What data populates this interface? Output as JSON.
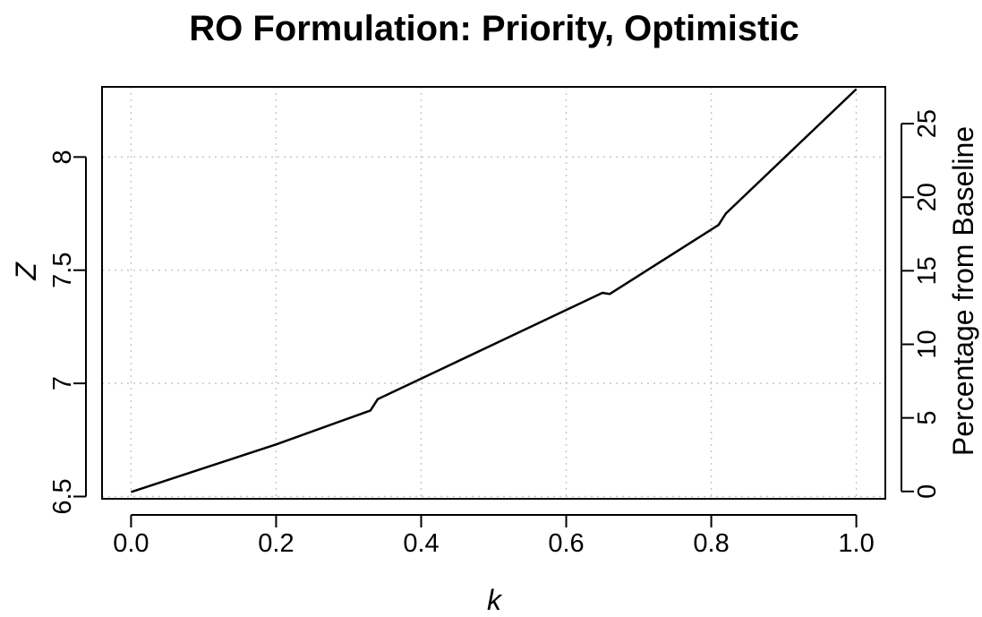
{
  "chart_data": {
    "type": "line",
    "title": "RO Formulation: Priority, Optimistic",
    "xlabel": "k",
    "ylabel": "Z",
    "ylabel_right": "Percentage from Baseline",
    "xlim": [
      -0.04,
      1.04
    ],
    "ylim": [
      6.49,
      8.31
    ],
    "y2lim": [
      -0.5,
      27.5
    ],
    "x_ticks": [
      0.0,
      0.2,
      0.4,
      0.6,
      0.8,
      1.0
    ],
    "x_tick_labels": [
      "0.0",
      "0.2",
      "0.4",
      "0.6",
      "0.8",
      "1.0"
    ],
    "y_ticks": [
      6.5,
      7,
      7.5,
      8
    ],
    "y_tick_labels": [
      "6.5",
      "7",
      "7.5",
      "8"
    ],
    "y2_ticks": [
      0,
      5,
      10,
      15,
      20,
      25
    ],
    "y2_tick_labels": [
      "0",
      "5",
      "10",
      "15",
      "20",
      "25"
    ],
    "grid": true,
    "line_color": "#000000",
    "grid_color": "#c8c8c8",
    "series": [
      {
        "x": [
          0.0,
          0.2,
          0.33,
          0.34,
          0.65,
          0.66,
          0.81,
          0.82,
          1.0
        ],
        "values": [
          6.52,
          6.73,
          6.88,
          6.93,
          7.4,
          7.395,
          7.7,
          7.75,
          8.3
        ]
      }
    ]
  }
}
